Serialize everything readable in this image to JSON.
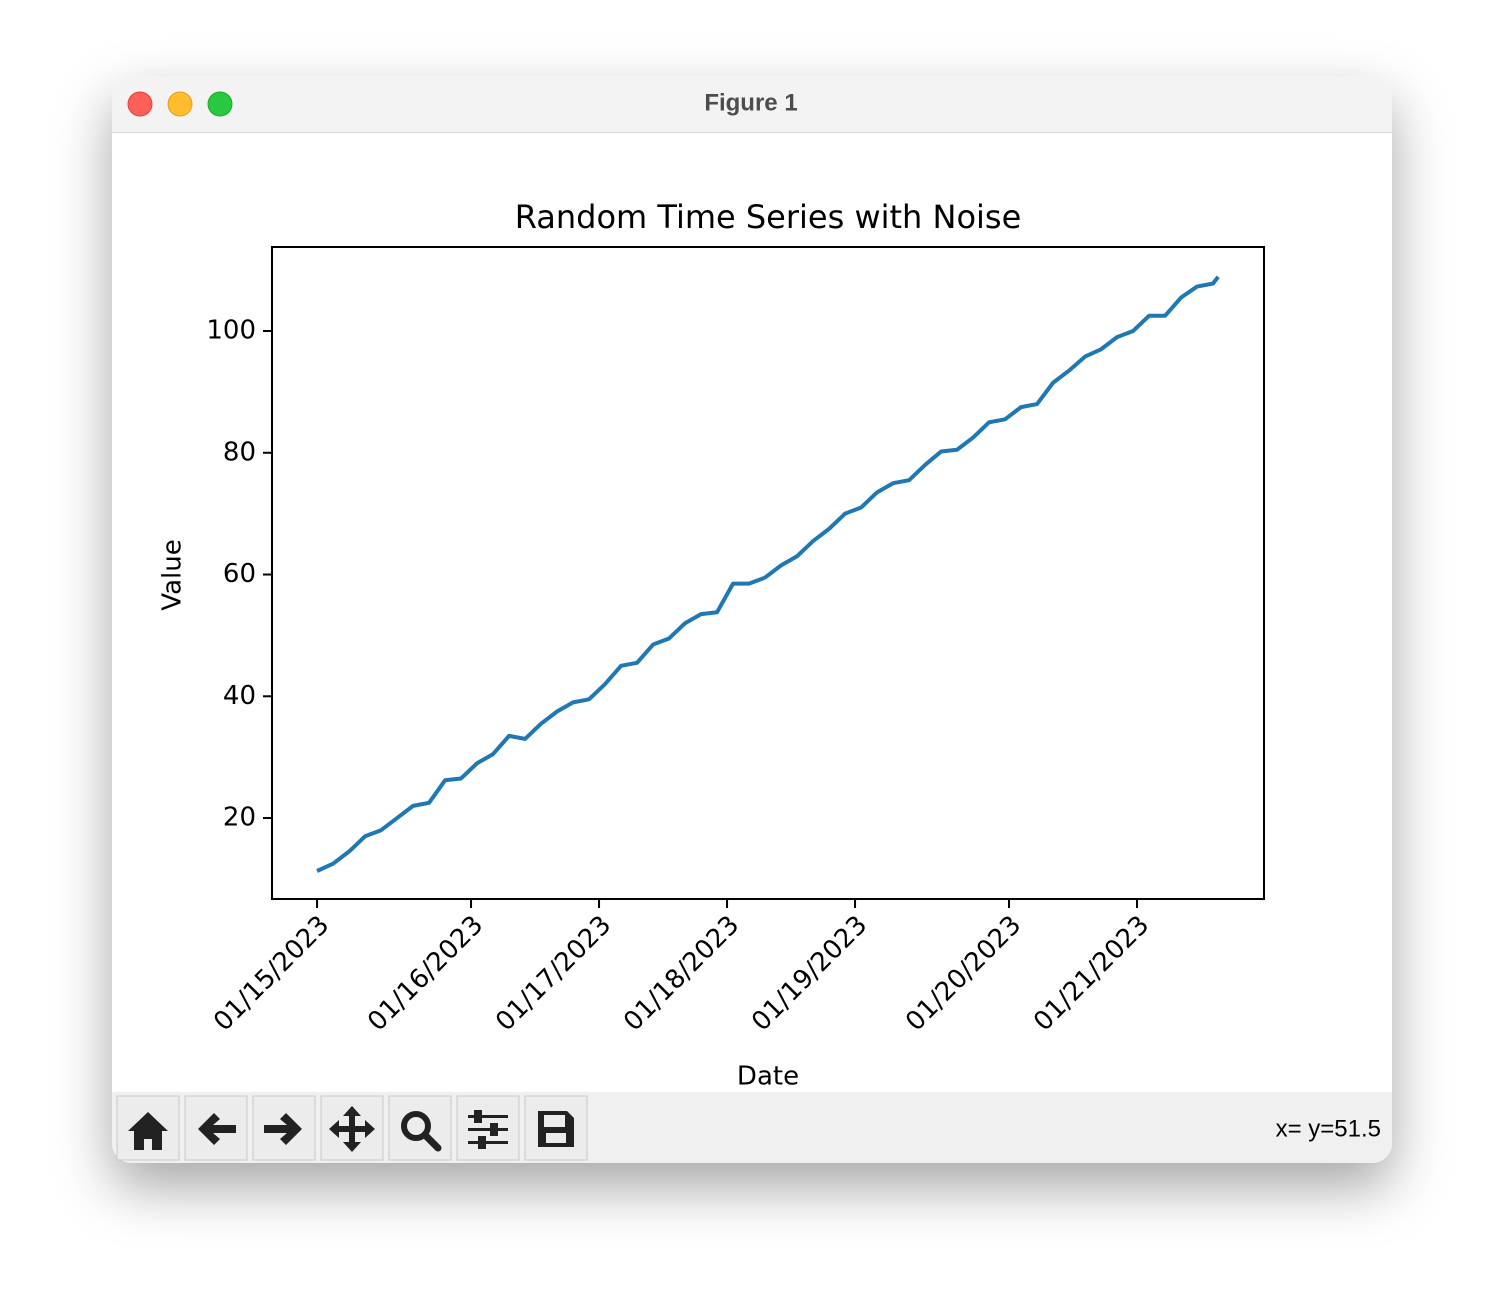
{
  "window": {
    "title": "Figure 1",
    "status": "x= y=51.5"
  },
  "chart_data": {
    "type": "line",
    "title": "Random Time Series with Noise",
    "xlabel": "Date",
    "ylabel": "Value",
    "x": [
      0,
      0.125,
      0.25,
      0.375,
      0.5,
      0.625,
      0.75,
      0.875,
      1,
      1.125,
      1.25,
      1.375,
      1.5,
      1.625,
      1.75,
      1.875,
      2,
      2.125,
      2.25,
      2.375,
      2.5,
      2.625,
      2.75,
      2.875,
      3,
      3.125,
      3.25,
      3.375,
      3.5,
      3.625,
      3.75,
      3.875,
      4,
      4.125,
      4.25,
      4.375,
      4.5,
      4.625,
      4.75,
      4.875,
      5,
      5.125,
      5.25,
      5.375,
      5.5,
      5.625,
      5.75,
      5.875,
      6,
      6.125,
      6.25,
      6.375,
      6.5,
      6.625,
      6.75,
      6.875,
      7,
      7.04
    ],
    "series": [
      {
        "name": "Value",
        "color": "#1f77b4",
        "values": [
          11.3,
          12.5,
          14.5,
          17,
          18,
          20,
          22,
          22.5,
          26.2,
          26.5,
          29,
          30.5,
          33.5,
          33,
          35.5,
          37.5,
          39,
          39.5,
          42,
          45,
          45.5,
          48.5,
          49.5,
          52,
          53.5,
          53.8,
          58.5,
          58.5,
          59.5,
          61.5,
          63,
          65.5,
          67.5,
          70,
          71,
          73.5,
          75,
          75.5,
          78,
          80.2,
          80.5,
          82.5,
          85,
          85.5,
          87.5,
          88,
          91.5,
          93.5,
          95.8,
          97,
          99,
          100,
          102.5,
          102.5,
          105.5,
          107.3,
          107.8,
          108.9
        ]
      }
    ],
    "xlim": [
      -0.352,
      7.398
    ],
    "xticks": [
      {
        "value": 0,
        "label": "01/15/2023"
      },
      {
        "value": 1.203,
        "label": "01/16/2023"
      },
      {
        "value": 2.203,
        "label": "01/17/2023"
      },
      {
        "value": 3.203,
        "label": "01/18/2023"
      },
      {
        "value": 4.203,
        "label": "01/19/2023"
      },
      {
        "value": 5.406,
        "label": "01/20/2023"
      },
      {
        "value": 6.406,
        "label": "01/21/2023"
      }
    ],
    "ylim": [
      6.7,
      113.8
    ],
    "yticks": [
      20,
      40,
      60,
      80,
      100
    ],
    "grid": false
  }
}
